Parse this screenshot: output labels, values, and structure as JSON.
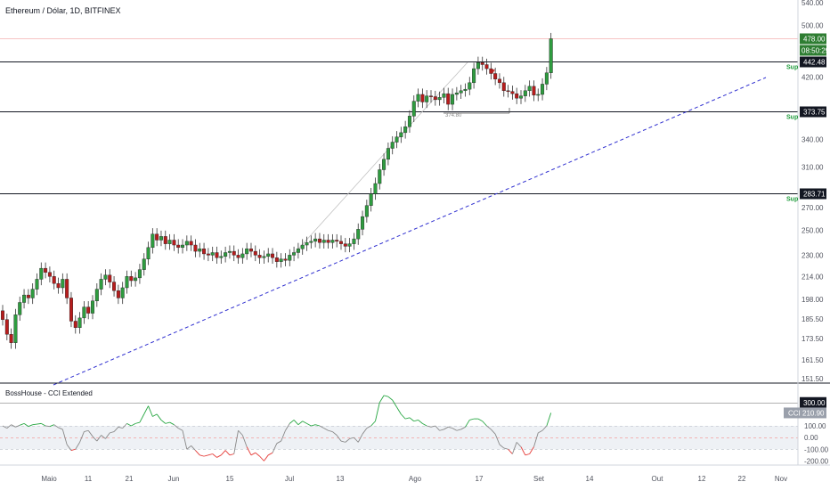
{
  "header": {
    "title": "Ethereum / Dólar, 1D, BITFINEX"
  },
  "indicator_header": {
    "title": "BossHouse - CCI Extended"
  },
  "colors": {
    "up": "#2e9c3f",
    "down": "#b71c1c",
    "trend": "#3030d0",
    "level": "#131722",
    "cci_pos": "#26a641",
    "cci_mid": "#888888",
    "cci_neg": "#e53935",
    "last_price_bg": "#2e7d32",
    "price_line": "#f7c4c4"
  },
  "chart_data": [
    {
      "type": "candlestick",
      "title": "Ethereum / Dólar, 1D, BITFINEX",
      "scale": "log",
      "y_range": [
        151.5,
        540
      ],
      "y_ticks": [
        "540.00",
        "500.00",
        "460.00",
        "420.00",
        "373.75",
        "340.00",
        "310.00",
        "283.71",
        "270.00",
        "250.00",
        "230.00",
        "214.00",
        "198.00",
        "185.50",
        "173.50",
        "161.50",
        "151.50"
      ],
      "x_ticks": [
        "Maio",
        "11",
        "21",
        "Jun",
        "15",
        "Jul",
        "13",
        "Ago",
        "17",
        "Set",
        "14",
        "Out",
        "12",
        "22",
        "Nov"
      ],
      "close": [
        185,
        176,
        171,
        188,
        196,
        201,
        199,
        205,
        212,
        220,
        217,
        214,
        209,
        206,
        212,
        199,
        184,
        180,
        186,
        193,
        189,
        197,
        205,
        212,
        215,
        210,
        204,
        199,
        206,
        214,
        211,
        213,
        219,
        227,
        236,
        247,
        242,
        245,
        239,
        242,
        238,
        236,
        238,
        241,
        238,
        233,
        235,
        231,
        230,
        232,
        228,
        229,
        232,
        233,
        230,
        228,
        231,
        235,
        233,
        230,
        228,
        229,
        231,
        228,
        225,
        227,
        226,
        230,
        232,
        235,
        238,
        240,
        241,
        243,
        240,
        242,
        240,
        242,
        241,
        239,
        237,
        239,
        243,
        251,
        262,
        272,
        283,
        293,
        307,
        318,
        330,
        337,
        343,
        348,
        355,
        368,
        387,
        396,
        386,
        394,
        393,
        389,
        392,
        397,
        383,
        396,
        398,
        401,
        403,
        412,
        432,
        441,
        438,
        432,
        425,
        417,
        412,
        401,
        400,
        397,
        391,
        394,
        401,
        407,
        395,
        396,
        410,
        426,
        478
      ],
      "level_lines": [
        442.48,
        373.75,
        283.71
      ],
      "last_price": 478.0,
      "countdown": "08:50:29",
      "support_label": "Sup",
      "annotation": "374.80"
    },
    {
      "type": "line",
      "title": "BossHouse - CCI Extended",
      "name": "CCI",
      "y_range": [
        -220,
        420
      ],
      "y_ticks": [
        "300.00",
        "100.00",
        "0.00",
        "-100.00",
        "-200.00"
      ],
      "levels": [
        300,
        100,
        0,
        -100
      ],
      "last_value": 210.9,
      "last_label": "CCI",
      "values": [
        100,
        80,
        110,
        90,
        105,
        120,
        95,
        110,
        115,
        120,
        100,
        95,
        110,
        85,
        70,
        -60,
        -110,
        -100,
        -40,
        50,
        60,
        10,
        -30,
        20,
        -10,
        40,
        50,
        90,
        80,
        120,
        100,
        120,
        130,
        200,
        270,
        180,
        200,
        150,
        120,
        130,
        110,
        80,
        60,
        -100,
        -70,
        -110,
        -150,
        -160,
        -150,
        -140,
        -170,
        -150,
        -110,
        -150,
        -140,
        60,
        20,
        -80,
        -150,
        -130,
        -160,
        -200,
        -150,
        -130,
        -50,
        -30,
        60,
        120,
        150,
        110,
        140,
        120,
        100,
        110,
        100,
        80,
        60,
        50,
        20,
        -30,
        -40,
        -10,
        0,
        -40,
        30,
        80,
        100,
        140,
        300,
        360,
        350,
        320,
        260,
        200,
        160,
        170,
        140,
        150,
        120,
        100,
        90,
        100,
        60,
        70,
        90,
        80,
        60,
        70,
        90,
        150,
        160,
        160,
        140,
        100,
        70,
        30,
        -60,
        -90,
        -100,
        -140,
        -40,
        -80,
        -150,
        -140,
        -80,
        40,
        60,
        100,
        210.9
      ]
    }
  ]
}
